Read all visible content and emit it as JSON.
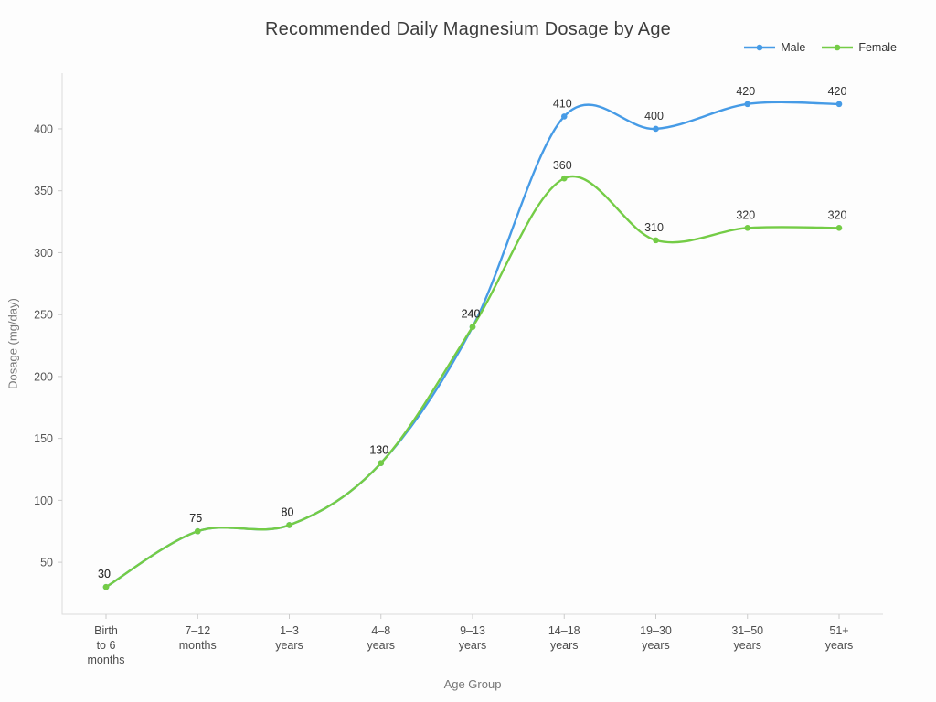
{
  "chart_data": {
    "type": "line",
    "title": "Recommended Daily Magnesium Dosage by Age",
    "xlabel": "Age Group",
    "ylabel": "Dosage (mg/day)",
    "categories": [
      "Birth to 6 months",
      "7–12 months",
      "1–3 years",
      "4–8 years",
      "9–13 years",
      "14–18 years",
      "19–30 years",
      "31–50 years",
      "51+ years"
    ],
    "categories_lines": [
      [
        "Birth",
        "to 6",
        "months"
      ],
      [
        "7–12",
        "months"
      ],
      [
        "1–3",
        "years"
      ],
      [
        "4–8",
        "years"
      ],
      [
        "9–13",
        "years"
      ],
      [
        "14–18",
        "years"
      ],
      [
        "19–30",
        "years"
      ],
      [
        "31–50",
        "years"
      ],
      [
        "51+",
        "years"
      ]
    ],
    "series": [
      {
        "name": "Male",
        "color": "#469be6",
        "values": [
          30,
          75,
          80,
          130,
          240,
          410,
          400,
          420,
          420
        ]
      },
      {
        "name": "Female",
        "color": "#74cc46",
        "values": [
          30,
          75,
          80,
          130,
          240,
          360,
          310,
          320,
          320
        ]
      }
    ],
    "yticks": [
      50,
      100,
      150,
      200,
      250,
      300,
      350,
      400
    ],
    "ylim": [
      8,
      445
    ],
    "line_shape": "spline",
    "markers": true,
    "data_labels": true,
    "grid": false,
    "legend_position": "top-right",
    "legend": [
      {
        "label": "Male",
        "color": "#469be6"
      },
      {
        "label": "Female",
        "color": "#74cc46"
      }
    ]
  },
  "colors": {
    "axis": "#dcdcdc",
    "tick": "#cccccc",
    "tick_label": "#555555",
    "category_label": "#4d4d4d",
    "data_label": "#333333",
    "title": "#3d3d3d",
    "axis_title": "#777777",
    "background": "#fdfdfd"
  }
}
